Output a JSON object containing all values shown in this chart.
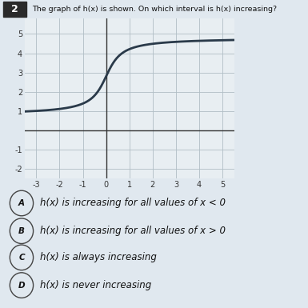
{
  "title": "The graph of h(x) is shown. On which interval is h(x) increasing?",
  "question_number": "2",
  "xlim": [
    -3.5,
    5.5
  ],
  "ylim": [
    -2.5,
    5.8
  ],
  "xticks": [
    -3,
    -2,
    -1,
    0,
    1,
    2,
    3,
    4,
    5
  ],
  "yticks": [
    -2,
    -1,
    1,
    2,
    3,
    4,
    5
  ],
  "curve_color": "#2a3a4a",
  "curve_linewidth": 2.0,
  "grid_color": "#b0bec5",
  "grid_linewidth": 0.6,
  "axis_color": "#333333",
  "background_color": "#e8eef2",
  "outer_background": "#e0e8ef",
  "answer_A": "h(x) is increasing for all values of x < 0",
  "answer_B": "h(x) is increasing for all values of x > 0",
  "answer_C": "h(x) is always increasing",
  "answer_D": "h(x) is never increasing",
  "answer_labels": [
    "A",
    "B",
    "C",
    "D"
  ],
  "arctan_shift_x": 0.0,
  "arctan_shift_y": 2.8,
  "arctan_stretch": 2.0,
  "arctan_amplitude": 2.0
}
